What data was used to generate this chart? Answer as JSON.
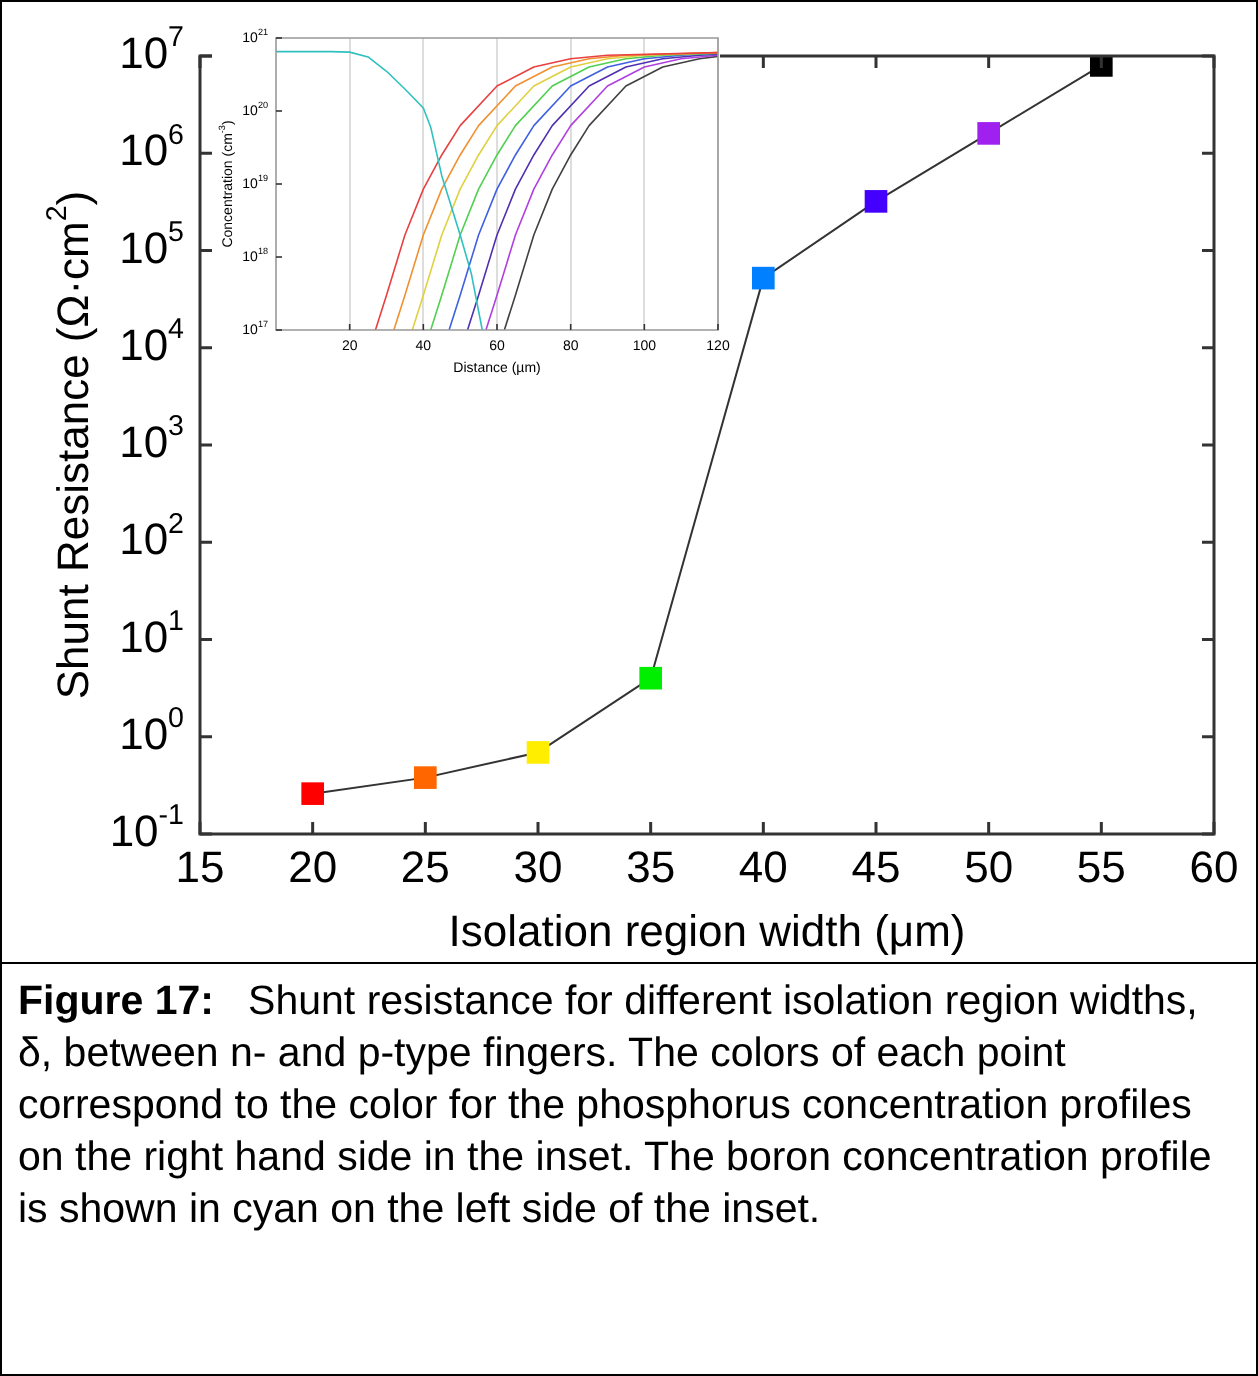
{
  "chart_data": [
    {
      "type": "line",
      "xlabel": "Isolation region width (μm)",
      "ylabel": "Shunt Resistance (Ω·cm$^{2}$)",
      "log": "y",
      "marker": "square",
      "x": [
        20,
        25,
        30,
        35,
        40,
        45,
        50,
        55
      ],
      "series": [
        {
          "color": "#333333",
          "colors": [
            "#ff0000",
            "#ff6600",
            "#ffee00",
            "#00ee00",
            "#0080ff",
            "#4400ff",
            "#a020f0",
            "#000000"
          ],
          "values": [
            0.26,
            0.38,
            0.69,
            4,
            52000,
            320000,
            1600000,
            8000000
          ]
        }
      ],
      "xlim": [
        15,
        60
      ],
      "xticks": [
        15,
        20,
        25,
        30,
        35,
        40,
        45,
        50,
        55,
        60
      ],
      "ylim": [
        0.1,
        10000000
      ],
      "yticks": [
        {
          "value": 0.1,
          "label": "10$^{-1}$"
        },
        {
          "value": 1,
          "label": "10$^{0}$"
        },
        {
          "value": 10,
          "label": "10$^{1}$"
        },
        {
          "value": 100,
          "label": "10$^{2}$"
        },
        {
          "value": 1000,
          "label": "10$^{3}$"
        },
        {
          "value": 10000,
          "label": "10$^{4}$"
        },
        {
          "value": 100000,
          "label": "10$^{5}$"
        },
        {
          "value": 1000000,
          "label": "10$^{6}$"
        },
        {
          "value": 10000000,
          "label": "10$^{7}$"
        }
      ],
      "annotations": [
        "Figure 17:   Shunt resistance for different isolation region widths, δ, between n- and p-type fingers. The colors of each point correspond to the color for the phosphorus concentration profiles on the right hand side in the inset. The boron concentration profile is shown in cyan on the left side of the inset."
      ]
    },
    {
      "type": "line",
      "xlabel": "Distance (µm)",
      "ylabel": "Concentration (cm$^{-3}$)",
      "log": "y",
      "grid": "x",
      "marker": "none",
      "xlim": [
        0,
        120
      ],
      "xticks": [
        20,
        40,
        60,
        80,
        100,
        120
      ],
      "ylim": [
        1e+17,
        1e+21
      ],
      "yticks": [
        {
          "value": 1e+17,
          "label": "10$^{17}$"
        },
        {
          "value": 1e+18,
          "label": "10$^{18}$"
        },
        {
          "value": 1e+19,
          "label": "10$^{19}$"
        },
        {
          "value": 1e+20,
          "label": "10$^{20}$"
        },
        {
          "value": 1e+21,
          "label": "10$^{21}$"
        }
      ],
      "series": [
        {
          "color": "#30c0c0",
          "x": [
            0,
            15,
            20,
            25,
            30,
            35,
            40,
            42,
            45,
            50,
            53,
            56
          ],
          "values": [
            6.5e+20,
            6.5e+20,
            6.4e+20,
            5.5e+20,
            3.5e+20,
            2e+20,
            1.1e+20,
            6e+19,
            1.3e+19,
            2e+18,
            6e+17,
            1e+17
          ]
        },
        {
          "color": "#e84040",
          "x": [
            27,
            30,
            35,
            40,
            45,
            50,
            60,
            70,
            80,
            90,
            120
          ],
          "values": [
            1e+17,
            3e+17,
            2e+18,
            8.5e+18,
            2.5e+19,
            6.3e+19,
            2.2e+20,
            4e+20,
            5.2e+20,
            5.8e+20,
            6.3e+20
          ]
        },
        {
          "color": "#f09030",
          "x": [
            32,
            35,
            40,
            45,
            50,
            55,
            65,
            75,
            85,
            95,
            120
          ],
          "values": [
            1e+17,
            3e+17,
            2e+18,
            8.5e+18,
            2.5e+19,
            6.3e+19,
            2.2e+20,
            4e+20,
            5.2e+20,
            5.8e+20,
            6.3e+20
          ]
        },
        {
          "color": "#e0d040",
          "x": [
            37,
            40,
            45,
            50,
            55,
            60,
            70,
            80,
            90,
            100,
            120
          ],
          "values": [
            1e+17,
            3e+17,
            2e+18,
            8.5e+18,
            2.5e+19,
            6.3e+19,
            2.2e+20,
            4e+20,
            5.2e+20,
            5.8e+20,
            6.3e+20
          ]
        },
        {
          "color": "#50d050",
          "x": [
            42,
            45,
            50,
            55,
            60,
            65,
            75,
            85,
            95,
            105,
            120
          ],
          "values": [
            1e+17,
            3e+17,
            2e+18,
            8.5e+18,
            2.5e+19,
            6.3e+19,
            2.2e+20,
            4e+20,
            5.2e+20,
            5.8e+20,
            6.2e+20
          ]
        },
        {
          "color": "#4060e0",
          "x": [
            47,
            50,
            55,
            60,
            65,
            70,
            80,
            90,
            100,
            110,
            120
          ],
          "values": [
            1e+17,
            3e+17,
            2e+18,
            8.5e+18,
            2.5e+19,
            6.3e+19,
            2.2e+20,
            4e+20,
            5.2e+20,
            5.8e+20,
            6.2e+20
          ]
        },
        {
          "color": "#5030b0",
          "x": [
            52,
            55,
            60,
            65,
            70,
            75,
            85,
            95,
            105,
            115,
            120
          ],
          "values": [
            1e+17,
            3e+17,
            2e+18,
            8.5e+18,
            2.5e+19,
            6.3e+19,
            2.2e+20,
            4e+20,
            5.2e+20,
            5.8e+20,
            6e+20
          ]
        },
        {
          "color": "#b040e0",
          "x": [
            57,
            60,
            65,
            70,
            75,
            80,
            90,
            100,
            110,
            120
          ],
          "values": [
            1e+17,
            3e+17,
            2e+18,
            8.5e+18,
            2.5e+19,
            6.3e+19,
            2.2e+20,
            4e+20,
            5.2e+20,
            5.8e+20
          ]
        },
        {
          "color": "#404040",
          "x": [
            62,
            65,
            70,
            75,
            80,
            85,
            95,
            105,
            115,
            120
          ],
          "values": [
            1e+17,
            3e+17,
            2e+18,
            8.5e+18,
            2.5e+19,
            6.3e+19,
            2.2e+20,
            4e+20,
            5.2e+20,
            5.6e+20
          ]
        }
      ]
    }
  ]
}
